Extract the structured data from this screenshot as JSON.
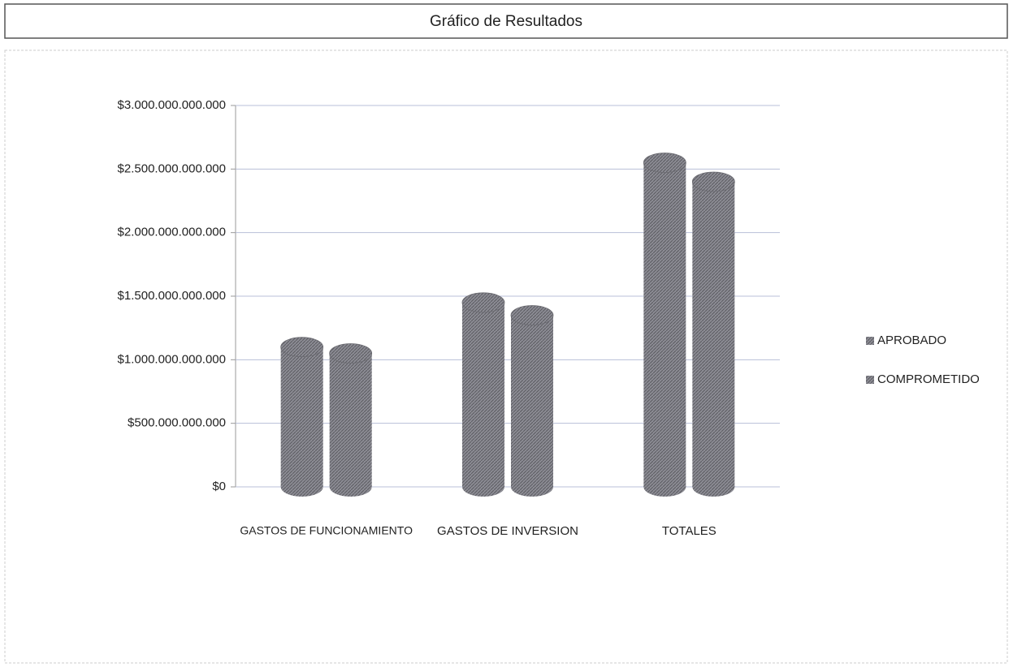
{
  "chart_data": {
    "type": "bar",
    "title": "Gráfico de Resultados",
    "categories": [
      "GASTOS DE FUNCIONAMIENTO",
      "GASTOS DE INVERSION",
      "TOTALES"
    ],
    "series": [
      {
        "name": "APROBADO",
        "color": "#8c8c94",
        "values": [
          1100000000000,
          1450000000000,
          2550000000000
        ]
      },
      {
        "name": "COMPROMETIDO",
        "color": "#8c8c94",
        "values": [
          1050000000000,
          1350000000000,
          2400000000000
        ]
      }
    ],
    "ylim": [
      0,
      3000000000000
    ],
    "yticks": [
      {
        "value": 0,
        "label": "$0"
      },
      {
        "value": 500000000000,
        "label": "$500.000.000.000"
      },
      {
        "value": 1000000000000,
        "label": "$1.000.000.000.000"
      },
      {
        "value": 1500000000000,
        "label": "$1.500.000.000.000"
      },
      {
        "value": 2000000000000,
        "label": "$2.000.000.000.000"
      },
      {
        "value": 2500000000000,
        "label": "$2.500.000.000.000"
      },
      {
        "value": 3000000000000,
        "label": "$3.000.000.000.000"
      }
    ],
    "grid": true,
    "legend": "right"
  }
}
